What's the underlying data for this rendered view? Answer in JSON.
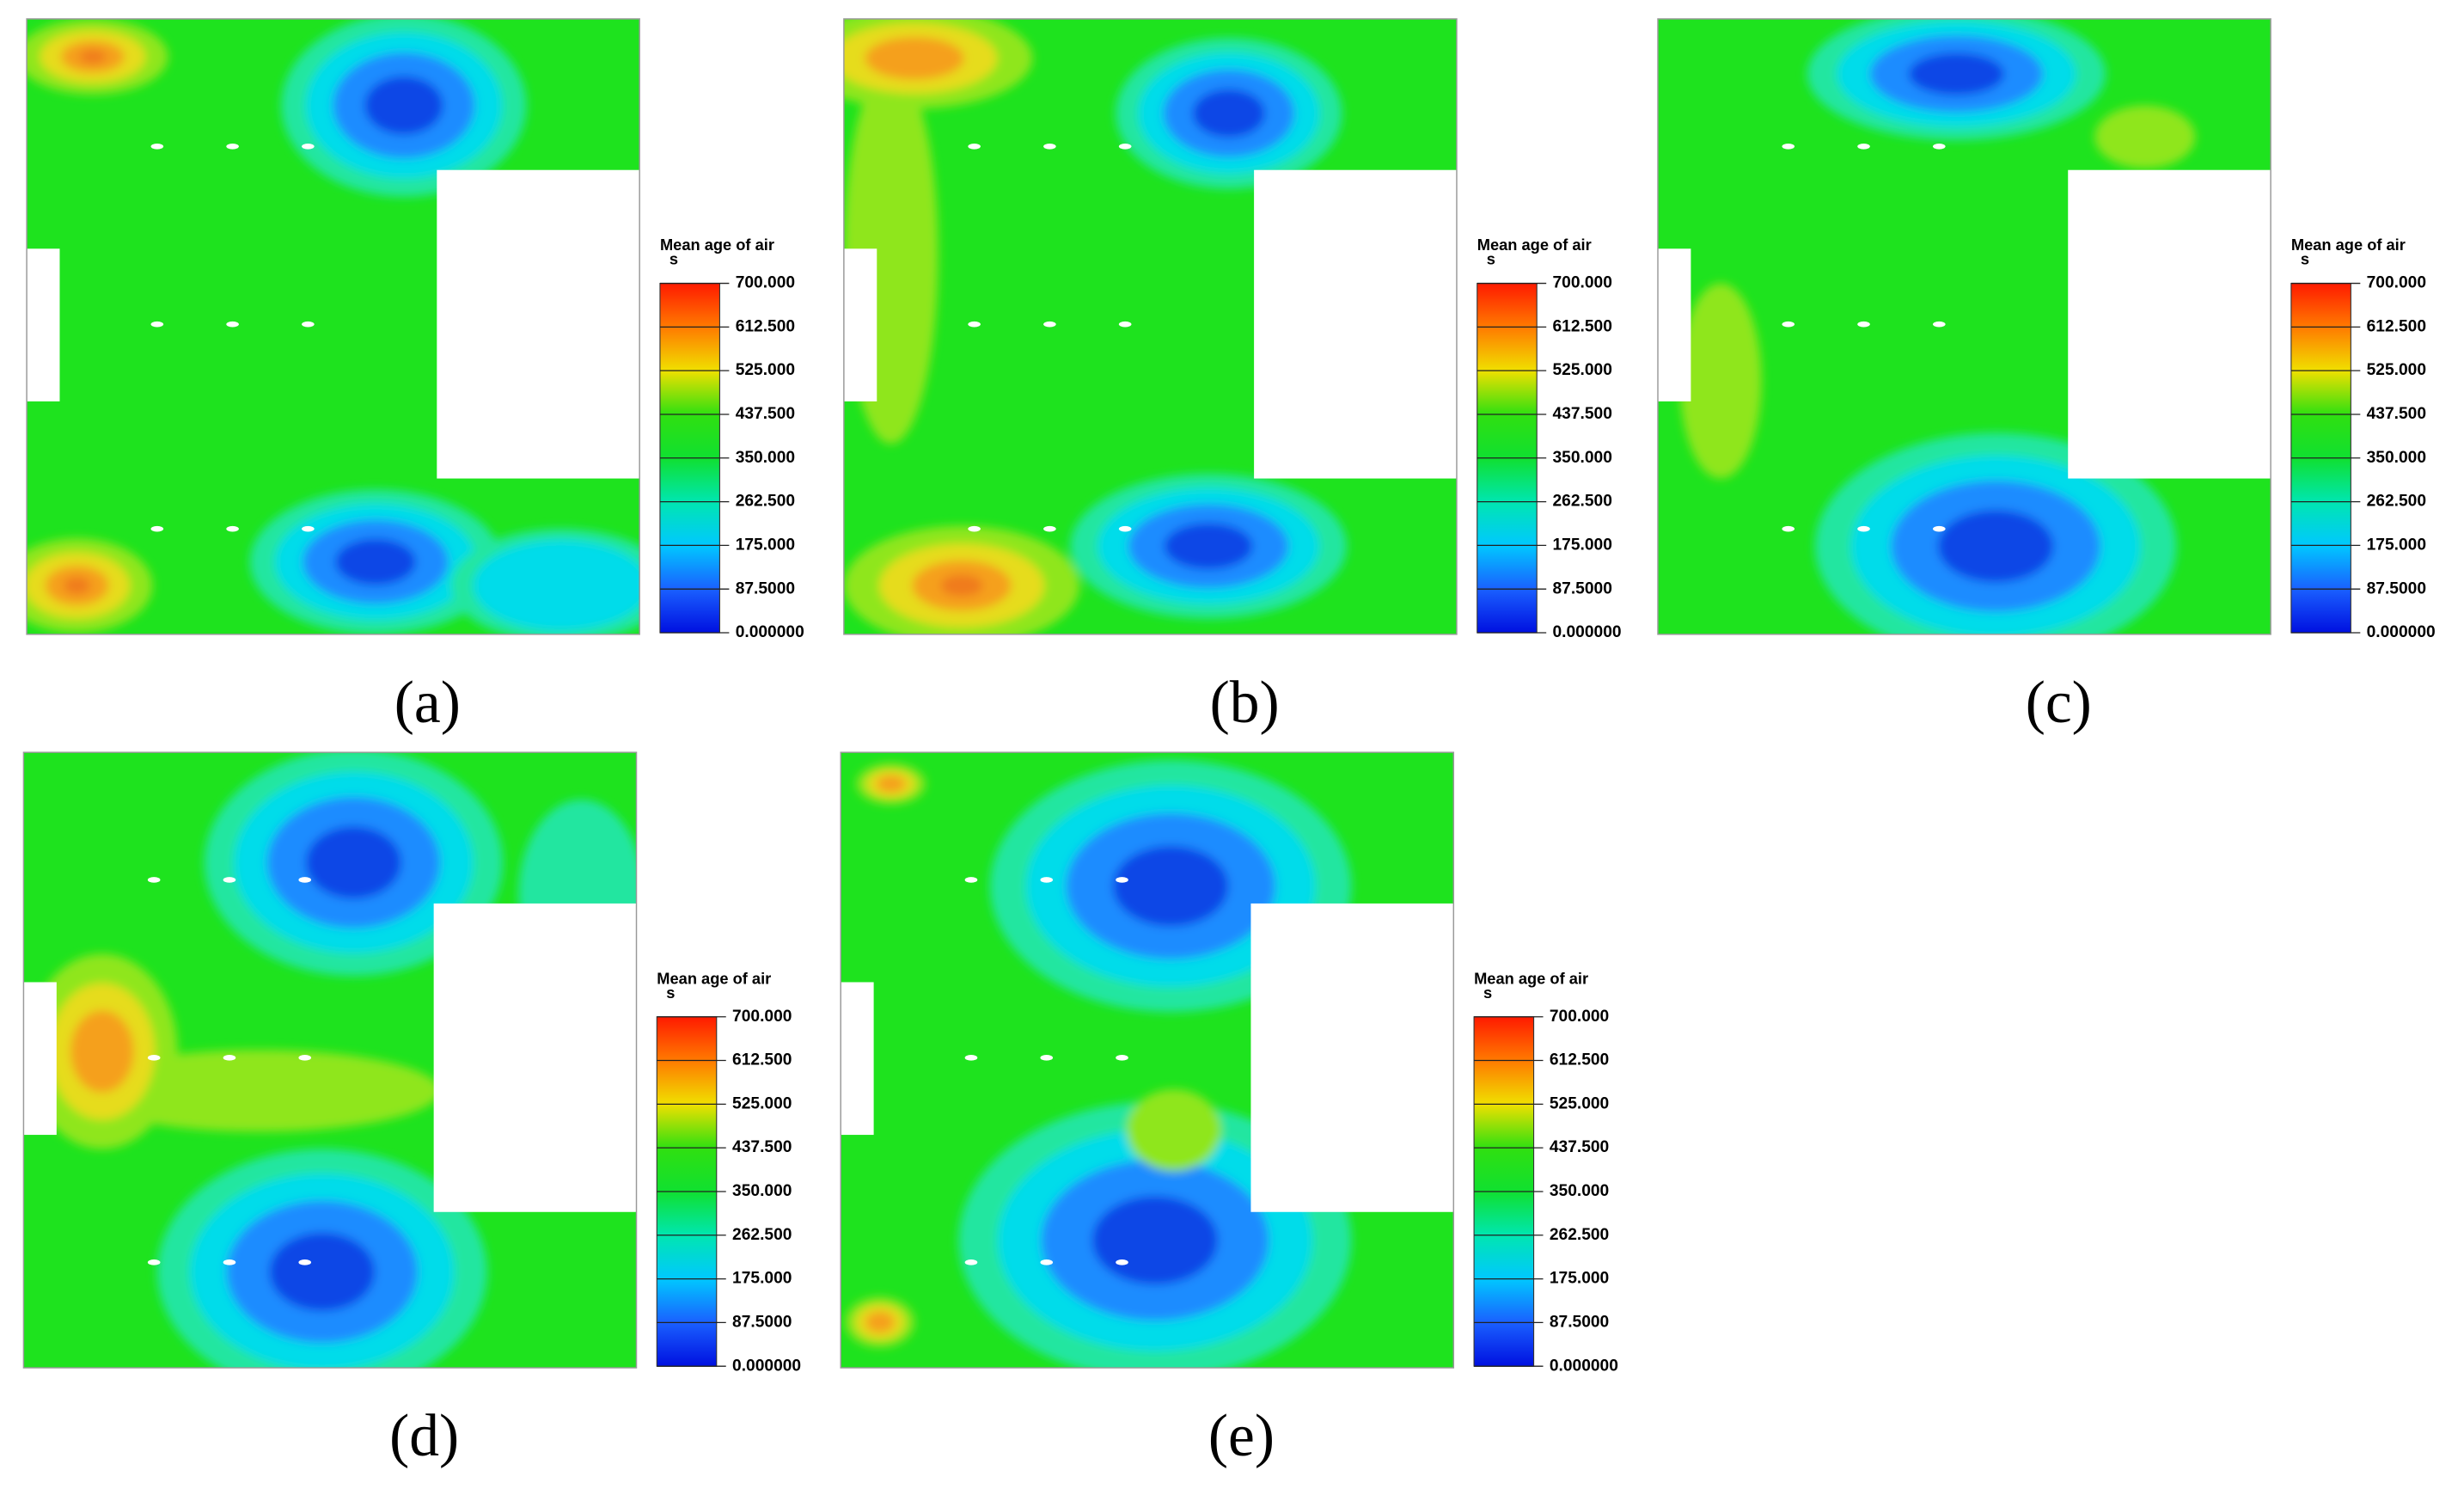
{
  "panels": [
    {
      "label": "(a)",
      "legend": {
        "title": "Mean age of air",
        "unit": "s",
        "ticks": [
          "700.000",
          "612.500",
          "525.000",
          "437.500",
          "350.000",
          "262.500",
          "175.000",
          "87.5000",
          "0.000000"
        ]
      }
    },
    {
      "label": "(b)",
      "legend": {
        "title": "Mean age of air",
        "unit": "s",
        "ticks": [
          "700.000",
          "612.500",
          "525.000",
          "437.500",
          "350.000",
          "262.500",
          "175.000",
          "87.5000",
          "0.000000"
        ]
      }
    },
    {
      "label": "(c)",
      "legend": {
        "title": "Mean age of air",
        "unit": "s",
        "ticks": [
          "700.000",
          "612.500",
          "525.000",
          "437.500",
          "350.000",
          "262.500",
          "175.000",
          "87.5000",
          "0.000000"
        ]
      }
    },
    {
      "label": "(d)",
      "legend": {
        "title": "Mean age of air",
        "unit": "s",
        "ticks": [
          "700.000",
          "612.500",
          "525.000",
          "437.500",
          "350.000",
          "262.500",
          "175.000",
          "87.5000",
          "0.000000"
        ]
      }
    },
    {
      "label": "(e)",
      "legend": {
        "title": "Mean age of air",
        "unit": "s",
        "ticks": [
          "700.000",
          "612.500",
          "525.000",
          "437.500",
          "350.000",
          "262.500",
          "175.000",
          "87.5000",
          "0.000000"
        ]
      }
    }
  ]
}
